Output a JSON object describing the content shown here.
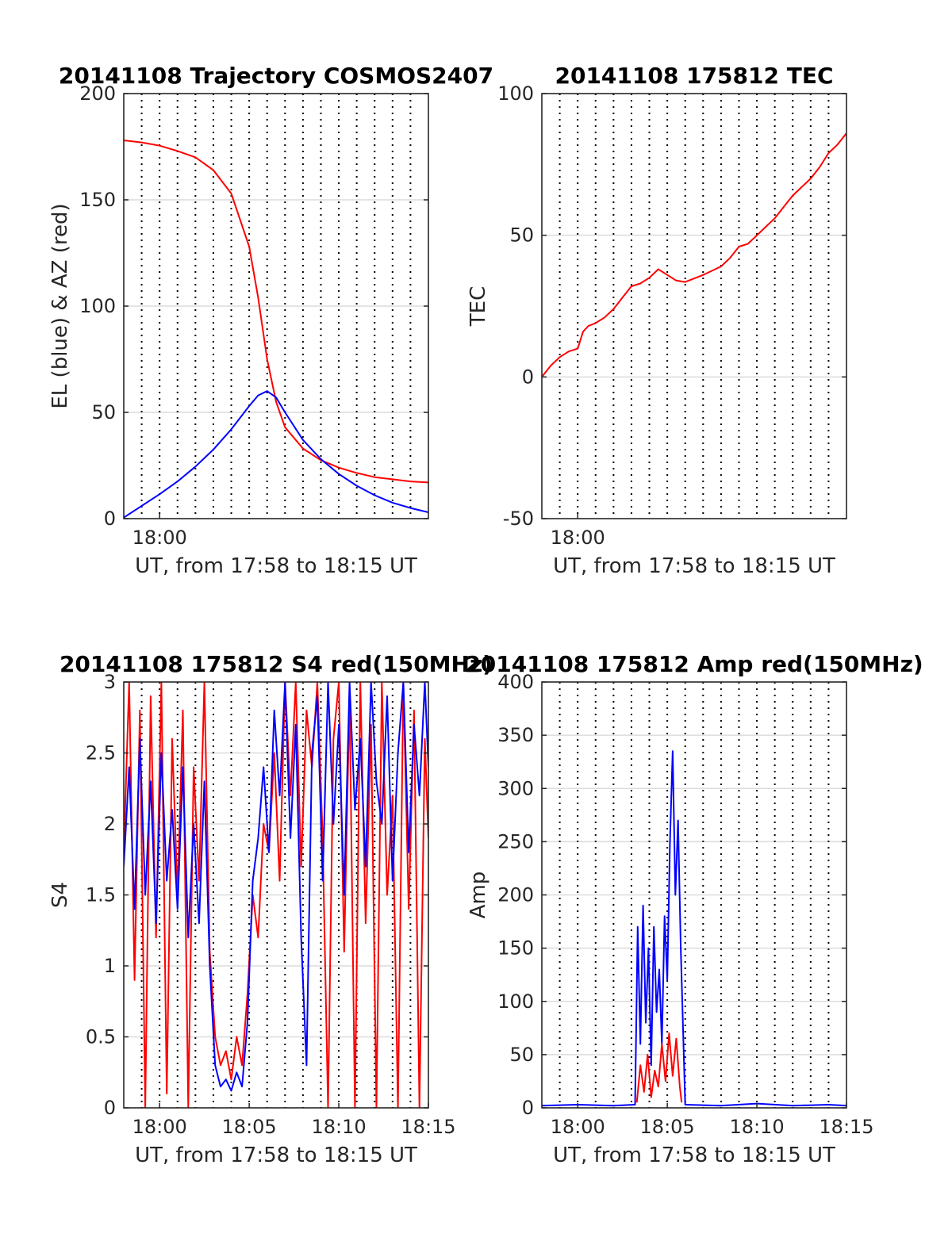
{
  "figure": {
    "background": "#ffffff"
  },
  "chart_data": [
    {
      "type": "line",
      "title": "20141108 Trajectory COSMOS2407",
      "xlabel": "UT, from 17:58 to 18:15 UT",
      "ylabel": "EL (blue) & AZ (red)",
      "xlim": [
        0,
        17
      ],
      "ylim": [
        0,
        200
      ],
      "yticks": [
        0,
        50,
        100,
        150,
        200
      ],
      "ytick_labels": [
        "0",
        "50",
        "100",
        "150",
        "200"
      ],
      "xticks": [
        2
      ],
      "xtick_labels": [
        "18:00"
      ],
      "xunit": "minutes after 17:58 UT",
      "grid": "dotted vertical every 1 min, light horizontal",
      "series": [
        {
          "color": "#ff0000",
          "x": [
            0,
            1,
            2,
            3,
            4,
            5,
            6,
            7,
            7.5,
            8,
            8.5,
            9,
            10,
            11,
            12,
            13,
            14,
            15,
            16,
            17
          ],
          "values": [
            178,
            177,
            175.5,
            173,
            170,
            164,
            153,
            128,
            104,
            75,
            55,
            43,
            33,
            27.5,
            24,
            21.5,
            19.5,
            18.5,
            17.5,
            17
          ]
        },
        {
          "color": "#0000ff",
          "x": [
            0,
            1,
            2,
            3,
            4,
            5,
            6,
            7,
            7.5,
            8,
            8.5,
            9,
            10,
            11,
            12,
            13,
            14,
            15,
            16,
            17
          ],
          "values": [
            0.5,
            6,
            11.5,
            17.5,
            24.5,
            32.5,
            42,
            53,
            58,
            60,
            57,
            50,
            37,
            28,
            21,
            15.5,
            11,
            7.5,
            5,
            3
          ]
        }
      ]
    },
    {
      "type": "line",
      "title": "20141108 175812 TEC",
      "xlabel": "UT, from 17:58 to 18:15 UT",
      "ylabel": "TEC",
      "xlim": [
        0,
        17
      ],
      "ylim": [
        -50,
        100
      ],
      "yticks": [
        -50,
        0,
        50,
        100
      ],
      "ytick_labels": [
        "-50",
        "0",
        "50",
        "100"
      ],
      "xticks": [
        2
      ],
      "xtick_labels": [
        "18:00"
      ],
      "xunit": "minutes after 17:58 UT",
      "grid": "dotted vertical every 1 min, light horizontal",
      "series": [
        {
          "color": "#ff0000",
          "x": [
            0,
            0.5,
            1,
            1.5,
            2,
            2.3,
            2.6,
            3,
            3.5,
            4,
            4.5,
            5,
            5.5,
            6,
            6.5,
            7,
            7.5,
            8,
            9,
            10,
            10.5,
            11,
            11.5,
            12,
            12.5,
            13,
            13.5,
            14,
            14.5,
            15,
            15.5,
            16,
            16.5,
            17
          ],
          "values": [
            0,
            4,
            7,
            9,
            10,
            16,
            18,
            19,
            21,
            24,
            28,
            32,
            33,
            35,
            38,
            36,
            34,
            33.5,
            36,
            39,
            42,
            46,
            47,
            50,
            53,
            56,
            60,
            64,
            67,
            70,
            74,
            79,
            82,
            86
          ]
        }
      ]
    },
    {
      "type": "line",
      "title": "20141108 175812 S4 red(150MHz)",
      "xlabel": "UT, from 17:58 to 18:15 UT",
      "ylabel": "S4",
      "xlim": [
        0,
        17
      ],
      "ylim": [
        0,
        3
      ],
      "yticks": [
        0,
        0.5,
        1,
        1.5,
        2,
        2.5,
        3
      ],
      "ytick_labels": [
        "0",
        "0.5",
        "1",
        "1.5",
        "2",
        "2.5",
        "3"
      ],
      "xticks": [
        2,
        7,
        12,
        17
      ],
      "xtick_labels": [
        "18:00",
        "18:05",
        "18:10",
        "18:15"
      ],
      "xunit": "minutes after 17:58 UT",
      "grid": "dotted vertical every 1 min, light horizontal",
      "series": [
        {
          "color": "#ff0000",
          "x": [
            0,
            0.3,
            0.6,
            0.9,
            1.2,
            1.5,
            1.8,
            2.1,
            2.4,
            2.7,
            3.0,
            3.3,
            3.6,
            3.9,
            4.2,
            4.5,
            4.8,
            5.1,
            5.4,
            5.7,
            6.0,
            6.3,
            6.6,
            6.9,
            7.2,
            7.5,
            7.8,
            8.1,
            8.4,
            8.7,
            9.0,
            9.3,
            9.6,
            9.9,
            10.2,
            10.5,
            10.8,
            11.1,
            11.4,
            11.7,
            12.0,
            12.3,
            12.6,
            12.9,
            13.2,
            13.5,
            13.8,
            14.1,
            14.4,
            14.7,
            15.0,
            15.3,
            15.6,
            15.9,
            16.2,
            16.5,
            16.8,
            17.0
          ],
          "values": [
            1.8,
            3.0,
            0.9,
            2.8,
            0.0,
            2.9,
            1.2,
            3.0,
            0.1,
            2.6,
            1.5,
            2.8,
            0.0,
            2.4,
            1.6,
            3.0,
            1.1,
            0.5,
            0.3,
            0.4,
            0.2,
            0.5,
            0.3,
            0.8,
            1.5,
            1.2,
            2.0,
            1.8,
            2.5,
            1.6,
            3.0,
            2.2,
            3.0,
            1.7,
            2.8,
            2.4,
            3.0,
            1.9,
            0.0,
            2.6,
            3.0,
            1.1,
            2.9,
            0.0,
            3.0,
            1.3,
            2.7,
            0.0,
            3.0,
            1.5,
            2.2,
            0.0,
            3.0,
            1.4,
            2.8,
            0.0,
            2.6,
            1.9
          ]
        },
        {
          "color": "#0000ff",
          "x": [
            0,
            0.3,
            0.6,
            0.9,
            1.2,
            1.5,
            1.8,
            2.1,
            2.4,
            2.7,
            3.0,
            3.3,
            3.6,
            3.9,
            4.2,
            4.5,
            4.8,
            5.1,
            5.4,
            5.7,
            6.0,
            6.3,
            6.6,
            6.9,
            7.2,
            7.5,
            7.8,
            8.1,
            8.4,
            8.7,
            9.0,
            9.3,
            9.6,
            9.9,
            10.2,
            10.5,
            10.8,
            11.1,
            11.4,
            11.7,
            12.0,
            12.3,
            12.6,
            12.9,
            13.2,
            13.5,
            13.8,
            14.1,
            14.4,
            14.7,
            15.0,
            15.3,
            15.6,
            15.9,
            16.2,
            16.5,
            16.8,
            17.0
          ],
          "values": [
            1.7,
            2.4,
            1.4,
            2.6,
            1.5,
            2.3,
            1.3,
            2.5,
            1.6,
            2.1,
            1.4,
            2.4,
            1.2,
            2.0,
            1.3,
            2.3,
            1.0,
            0.3,
            0.15,
            0.2,
            0.12,
            0.25,
            0.15,
            0.6,
            1.6,
            1.9,
            2.4,
            1.8,
            2.8,
            2.2,
            3.0,
            1.9,
            2.7,
            1.2,
            0.3,
            2.5,
            2.9,
            1.6,
            3.0,
            2.0,
            2.7,
            1.5,
            3.0,
            2.1,
            2.6,
            1.7,
            3.0,
            2.3,
            2.0,
            2.9,
            1.6,
            2.5,
            3.0,
            1.8,
            2.7,
            2.2,
            3.0,
            2.4
          ]
        }
      ]
    },
    {
      "type": "line",
      "title": "20141108 175812 Amp red(150MHz)",
      "xlabel": "UT, from 17:58 to 18:15 UT",
      "ylabel": "Amp",
      "xlim": [
        0,
        17
      ],
      "ylim": [
        0,
        400
      ],
      "yticks": [
        0,
        50,
        100,
        150,
        200,
        250,
        300,
        350,
        400
      ],
      "ytick_labels": [
        "0",
        "50",
        "100",
        "150",
        "200",
        "250",
        "300",
        "350",
        "400"
      ],
      "xticks": [
        2,
        7,
        12,
        17
      ],
      "xtick_labels": [
        "18:00",
        "18:05",
        "18:10",
        "18:15"
      ],
      "xunit": "minutes after 17:58 UT",
      "grid": "dotted vertical every 1 min, light horizontal",
      "series": [
        {
          "color": "#0000ff",
          "x": [
            0,
            2,
            4,
            5.2,
            5.35,
            5.5,
            5.65,
            5.8,
            5.95,
            6.1,
            6.25,
            6.4,
            6.55,
            6.7,
            6.85,
            7.0,
            7.15,
            7.3,
            7.45,
            7.6,
            7.75,
            8.0,
            10,
            12,
            14,
            16,
            17
          ],
          "values": [
            2,
            3,
            2,
            3,
            170,
            60,
            190,
            80,
            150,
            40,
            170,
            90,
            130,
            60,
            180,
            120,
            250,
            335,
            200,
            270,
            150,
            3,
            2,
            4,
            2,
            3,
            2
          ]
        },
        {
          "color": "#ff0000",
          "x": [
            5.3,
            5.5,
            5.7,
            5.9,
            6.1,
            6.3,
            6.5,
            6.7,
            6.9,
            7.1,
            7.3,
            7.5,
            7.7,
            7.8
          ],
          "values": [
            5,
            40,
            15,
            50,
            10,
            35,
            20,
            60,
            25,
            70,
            30,
            65,
            20,
            5
          ]
        }
      ]
    }
  ]
}
